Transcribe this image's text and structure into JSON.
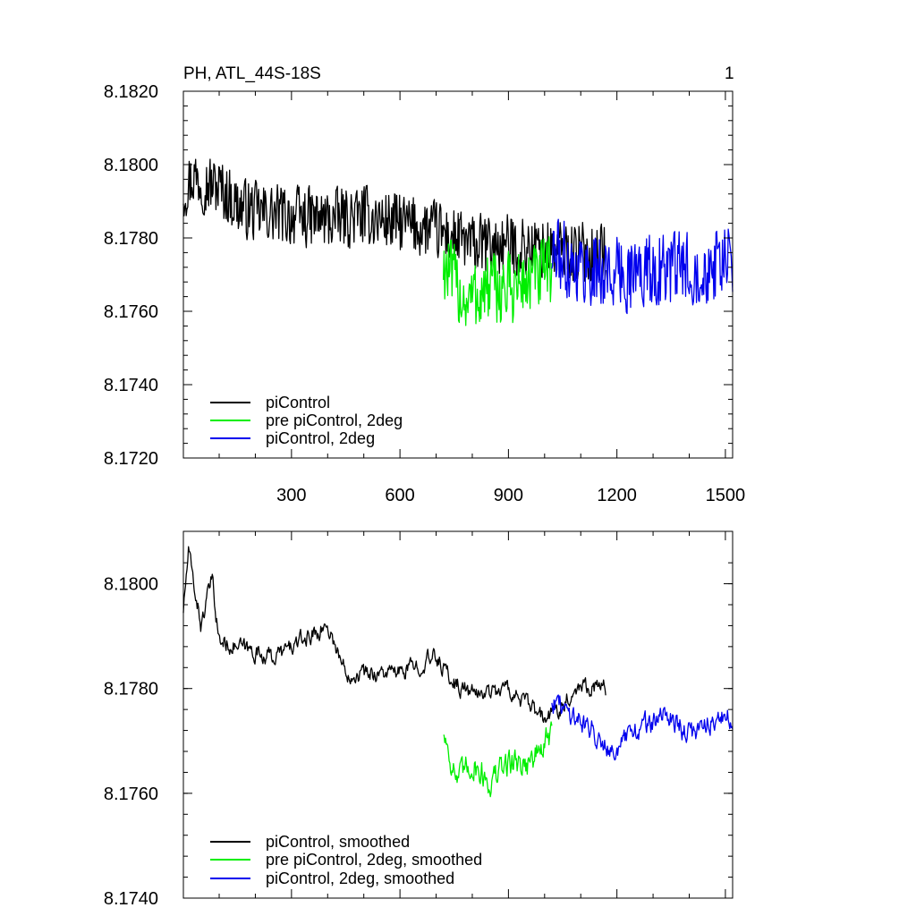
{
  "chart_data": [
    {
      "type": "line",
      "title": "PH, ATL_44S-18S",
      "panel_label": "1",
      "xlabel": "",
      "ylabel": "",
      "xlim": [
        1,
        1520
      ],
      "ylim": [
        8.172,
        8.182
      ],
      "x_ticks": [
        300,
        600,
        900,
        1200,
        1500
      ],
      "x_tick_labels": [
        "300",
        "600",
        "900",
        "1200",
        "1500"
      ],
      "y_ticks": [
        8.172,
        8.174,
        8.176,
        8.178,
        8.18,
        8.182
      ],
      "y_tick_labels": [
        "8.1720",
        "8.1740",
        "8.1760",
        "8.1780",
        "8.1800",
        "8.1820"
      ],
      "legend_position": "bottom-left",
      "series": [
        {
          "name": "piControl",
          "color": "#000000",
          "x_range": [
            1,
            1170
          ],
          "anchors": [
            [
              1,
              8.1793
            ],
            [
              30,
              8.1797
            ],
            [
              60,
              8.1795
            ],
            [
              100,
              8.1794
            ],
            [
              150,
              8.1789
            ],
            [
              200,
              8.1787
            ],
            [
              300,
              8.1786
            ],
            [
              400,
              8.1785
            ],
            [
              500,
              8.1786
            ],
            [
              600,
              8.1784
            ],
            [
              700,
              8.1782
            ],
            [
              800,
              8.1778
            ],
            [
              900,
              8.1778
            ],
            [
              1000,
              8.1777
            ],
            [
              1100,
              8.1776
            ],
            [
              1170,
              8.1776
            ]
          ],
          "noise_amplitude": 0.0009
        },
        {
          "name": "pre piControl, 2deg",
          "color": "#00ee00",
          "x_range": [
            720,
            1020
          ],
          "anchors": [
            [
              720,
              8.1773
            ],
            [
              780,
              8.1763
            ],
            [
              850,
              8.1766
            ],
            [
              900,
              8.1766
            ],
            [
              950,
              8.1768
            ],
            [
              1020,
              8.1771
            ]
          ],
          "noise_amplitude": 0.0011
        },
        {
          "name": "piControl, 2deg",
          "color": "#0000ee",
          "x_range": [
            1020,
            1520
          ],
          "anchors": [
            [
              1020,
              8.1776
            ],
            [
              1100,
              8.1772
            ],
            [
              1200,
              8.177
            ],
            [
              1300,
              8.1771
            ],
            [
              1400,
              8.1772
            ],
            [
              1520,
              8.1773
            ]
          ],
          "noise_amplitude": 0.0011
        }
      ]
    },
    {
      "type": "line",
      "title": "",
      "xlabel": "",
      "ylabel": "",
      "xlim": [
        1,
        1520
      ],
      "ylim": [
        8.174,
        8.181
      ],
      "x_ticks": [
        300,
        600,
        900,
        1200,
        1500
      ],
      "x_tick_labels": [],
      "y_ticks": [
        8.174,
        8.176,
        8.178,
        8.18
      ],
      "y_tick_labels": [
        "8.1740",
        "8.1760",
        "8.1780",
        "8.1800"
      ],
      "legend_position": "bottom-left",
      "series": [
        {
          "name": "piControl, smoothed",
          "color": "#000000",
          "x_range": [
            1,
            1170
          ],
          "anchors": [
            [
              1,
              8.1795
            ],
            [
              15,
              8.1806
            ],
            [
              50,
              8.1792
            ],
            [
              80,
              8.1801
            ],
            [
              100,
              8.1789
            ],
            [
              200,
              8.1787
            ],
            [
              250,
              8.1786
            ],
            [
              300,
              8.1788
            ],
            [
              400,
              8.1792
            ],
            [
              450,
              8.1783
            ],
            [
              500,
              8.1783
            ],
            [
              600,
              8.1783
            ],
            [
              700,
              8.1786
            ],
            [
              750,
              8.1781
            ],
            [
              800,
              8.1779
            ],
            [
              900,
              8.178
            ],
            [
              1000,
              8.1774
            ],
            [
              1050,
              8.1777
            ],
            [
              1100,
              8.1781
            ],
            [
              1170,
              8.178
            ]
          ],
          "noise_amplitude": 0.0003
        },
        {
          "name": "pre piControl, 2deg, smoothed",
          "color": "#00ee00",
          "x_range": [
            720,
            1020
          ],
          "anchors": [
            [
              720,
              8.1772
            ],
            [
              760,
              8.1762
            ],
            [
              800,
              8.1766
            ],
            [
              850,
              8.1762
            ],
            [
              900,
              8.1766
            ],
            [
              960,
              8.1766
            ],
            [
              1020,
              8.1771
            ]
          ],
          "noise_amplitude": 0.0005
        },
        {
          "name": "piControl, 2deg, smoothed",
          "color": "#0000ee",
          "x_range": [
            1020,
            1520
          ],
          "anchors": [
            [
              1020,
              8.1778
            ],
            [
              1100,
              8.1774
            ],
            [
              1200,
              8.1768
            ],
            [
              1250,
              8.1772
            ],
            [
              1350,
              8.1775
            ],
            [
              1400,
              8.1771
            ],
            [
              1450,
              8.1774
            ],
            [
              1520,
              8.1774
            ]
          ],
          "noise_amplitude": 0.0004
        }
      ]
    }
  ]
}
